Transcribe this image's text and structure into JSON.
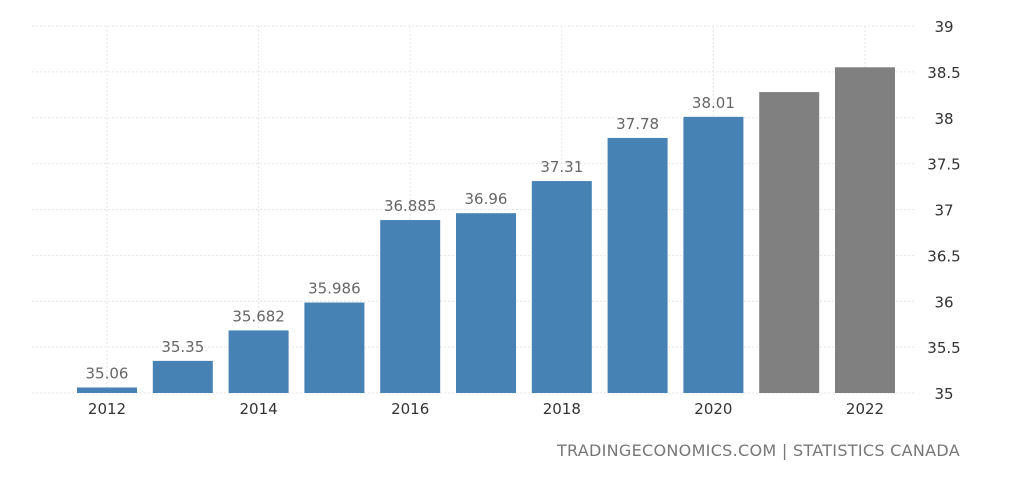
{
  "chart_data": {
    "type": "bar",
    "title": "",
    "xlabel": "",
    "ylabel": "",
    "categories": [
      "2012",
      "2013",
      "2014",
      "2015",
      "2016",
      "2017",
      "2018",
      "2019",
      "2020",
      "2021",
      "2022"
    ],
    "values": [
      35.06,
      35.35,
      35.682,
      35.986,
      36.885,
      36.96,
      37.31,
      37.78,
      38.01,
      38.28,
      38.55
    ],
    "data_labels": [
      "35.06",
      "35.35",
      "35.682",
      "35.986",
      "36.885",
      "36.96",
      "37.31",
      "37.78",
      "38.01",
      "",
      ""
    ],
    "forecast": [
      false,
      false,
      false,
      false,
      false,
      false,
      false,
      false,
      false,
      true,
      true
    ],
    "x_tick_labels": [
      "2012",
      "",
      "2014",
      "",
      "2016",
      "",
      "2018",
      "",
      "2020",
      "",
      "2022"
    ],
    "y_ticks": [
      "35",
      "35.5",
      "36",
      "36.5",
      "37",
      "37.5",
      "38",
      "38.5",
      "39"
    ],
    "ylim": [
      35,
      39
    ],
    "y_axis_position": "right",
    "grid": true,
    "legend": "none",
    "colors": {
      "actual": "#4682b4",
      "forecast": "#808080",
      "grid": "#e6e6e6"
    }
  },
  "source_text": "TRADINGECONOMICS.COM | STATISTICS CANADA"
}
